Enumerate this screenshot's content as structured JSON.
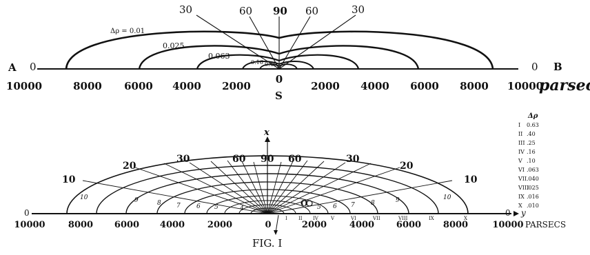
{
  "upper": {
    "endpoint_left": "A",
    "endpoint_right": "B",
    "axis_zero_left": "0",
    "axis_zero_right": "0",
    "sun_label": "S",
    "units": "parsecs",
    "ticks": [
      "10000",
      "8000",
      "6000",
      "4000",
      "2000",
      "0",
      "2000",
      "4000",
      "6000",
      "8000",
      "10000"
    ],
    "angle_labels": [
      "30",
      "60",
      "90",
      "60",
      "30"
    ],
    "contour_labels": [
      "Δρ = 0.01",
      "0.025",
      "0.063",
      "0.16",
      "0.40"
    ]
  },
  "lower": {
    "x_axis_label": "x",
    "y_axis_label": "y",
    "axis_zero_left": "0",
    "axis_zero_right": "0",
    "units": "PARSECS",
    "ticks": [
      "10000",
      "8000",
      "6000",
      "4000",
      "2000",
      "0",
      "2000",
      "4000",
      "6000",
      "8000",
      "10000"
    ],
    "angle_labels": [
      "10",
      "20",
      "30",
      "60",
      "90",
      "60",
      "30",
      "20",
      "10"
    ],
    "roman_markers": [
      "I",
      "II",
      "IV",
      "V",
      "VI",
      "VII",
      "VIII",
      "IX",
      "X"
    ],
    "ring_numbers": [
      "10",
      "9",
      "8",
      "7",
      "6",
      "5",
      "4",
      "5",
      "6",
      "7",
      "8",
      "9",
      "10"
    ],
    "point_label": "O",
    "legend": {
      "header": "Δρ",
      "rows": [
        {
          "num": "I",
          "val": "0.63"
        },
        {
          "num": "II",
          "val": ".40"
        },
        {
          "num": "III",
          "val": ".25"
        },
        {
          "num": "IV",
          "val": ".16"
        },
        {
          "num": "V",
          "val": ".10"
        },
        {
          "num": "VI",
          "val": ".063"
        },
        {
          "num": "VII",
          "val": ".040"
        },
        {
          "num": "VIII",
          "val": ".025"
        },
        {
          "num": "IX",
          "val": ".016"
        },
        {
          "num": "X",
          "val": ".010"
        }
      ]
    }
  },
  "caption": "FIG. I"
}
